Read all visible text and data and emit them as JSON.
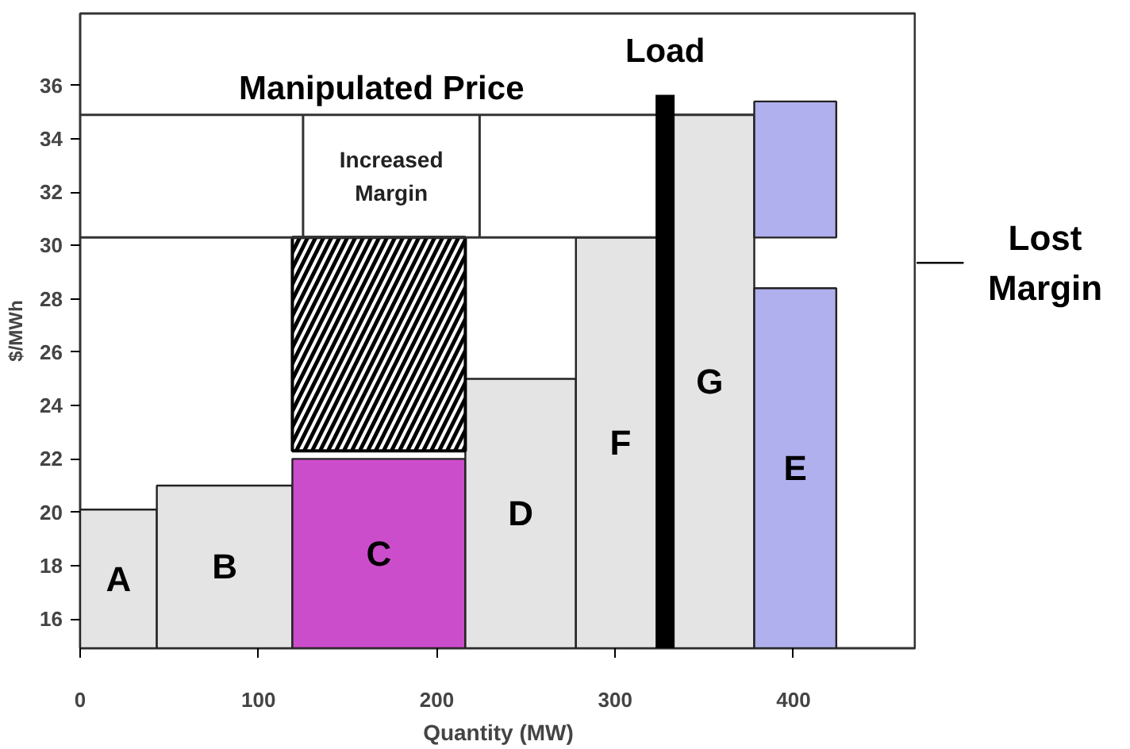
{
  "chart_data": {
    "type": "histogram",
    "xlabel": "Quantity (MW)",
    "ylabel": "$/MWh",
    "xlim": [
      0,
      469
    ],
    "ylim": [
      14.9,
      38.7
    ],
    "xticks": [
      {
        "value": 0,
        "label": "0"
      },
      100,
      200,
      300,
      400
    ],
    "yticks": [
      16,
      18,
      20,
      22,
      24,
      26,
      28,
      30,
      32,
      34,
      36
    ],
    "bins": [
      0,
      43,
      119,
      216,
      278,
      328,
      378,
      424
    ],
    "values": [
      20.1,
      21.0,
      22.0,
      25.0,
      30.3,
      34.9,
      28.4
    ],
    "colors": [
      "#e4e4e4",
      "#e4e4e4",
      "#cc4dcc",
      "#e4e4e4",
      "#e4e4e4",
      "#e4e4e4",
      "#b0b0ee"
    ],
    "series": [
      {
        "type": "bar",
        "x": [
          167.5
        ],
        "base": [
          22.3
        ],
        "values": [
          8.0
        ],
        "color": "#000000"
      },
      {
        "type": "bar",
        "x": [
          401
        ],
        "base": [
          30.3
        ],
        "values": [
          5.1
        ],
        "color": "#b0b0ee"
      }
    ],
    "ref_lines": [
      {
        "axis": "y",
        "value": 34.9,
        "label": "Manipulated Price"
      },
      {
        "axis": "y",
        "value": 30.3
      },
      {
        "axis": "x",
        "value": 328,
        "label": "Load",
        "color": "#000000"
      }
    ],
    "annotations": [
      "A",
      "B",
      "C",
      "D",
      "F",
      "G",
      "E",
      "Increased Margin",
      "Lost Margin"
    ]
  }
}
